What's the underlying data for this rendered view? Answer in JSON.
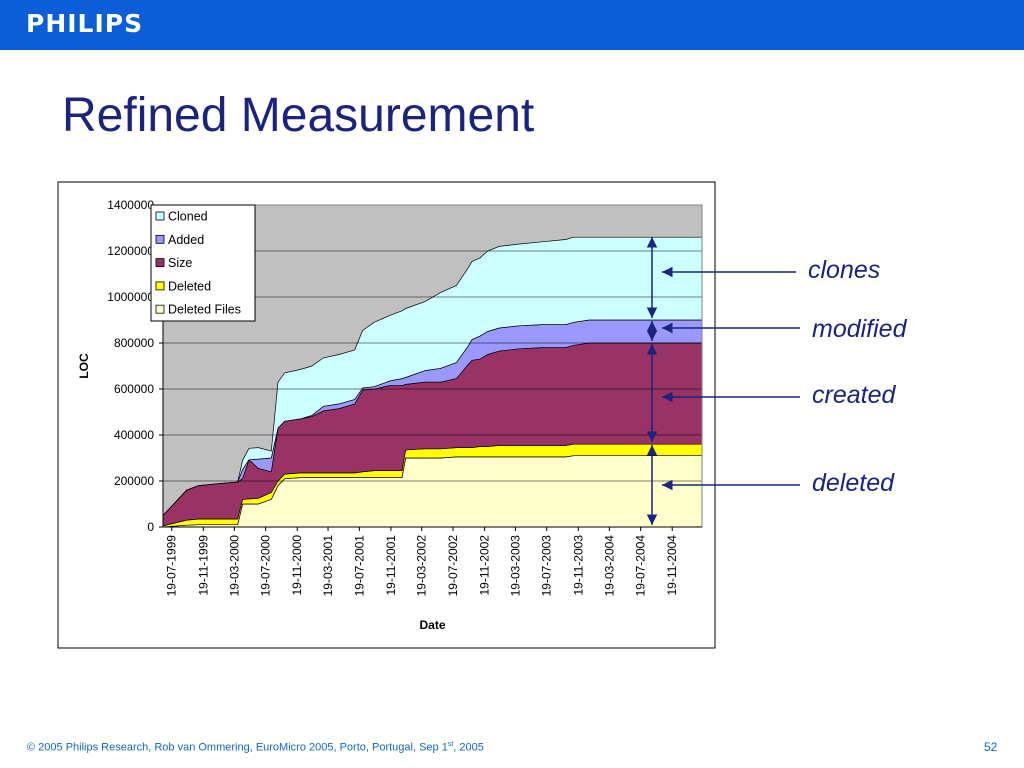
{
  "header": {
    "logo_text": "PHILIPS",
    "bar_color": "#0b5ed7"
  },
  "slide": {
    "title": "Refined Measurement",
    "page_number": "52"
  },
  "footer": {
    "text_before_sup": "© 2005 Philips Research,  Rob van Ommering, EuroMicro 2005, Porto, Portugal, Sep 1",
    "sup": "st",
    "text_after_sup": ", 2005"
  },
  "annotations": {
    "clones": "clones",
    "modified": "modified",
    "created": "created",
    "deleted": "deleted",
    "arrow_color": "#1a237e"
  },
  "chart_data": {
    "type": "area",
    "stacked": true,
    "title": "",
    "xlabel": "Date",
    "ylabel": "LOC",
    "ylim": [
      0,
      1400000
    ],
    "yticks": [
      0,
      200000,
      400000,
      600000,
      800000,
      1000000,
      1200000,
      1400000
    ],
    "xlim": [
      "1999-06-15",
      "2005-03-15"
    ],
    "xtick_labels": [
      "19-07-1999",
      "19-11-1999",
      "19-03-2000",
      "19-07-2000",
      "19-11-2000",
      "19-03-2001",
      "19-07-2001",
      "19-11-2001",
      "19-03-2002",
      "19-07-2002",
      "19-11-2002",
      "19-03-2003",
      "19-07-2003",
      "19-11-2003",
      "19-03-2004",
      "19-07-2004",
      "19-11-2004"
    ],
    "xtick_dates": [
      "1999-07-19",
      "1999-11-19",
      "2000-03-19",
      "2000-07-19",
      "2000-11-19",
      "2001-03-19",
      "2001-07-19",
      "2001-11-19",
      "2002-03-19",
      "2002-07-19",
      "2002-11-19",
      "2003-03-19",
      "2003-07-19",
      "2003-11-19",
      "2004-03-19",
      "2004-07-19",
      "2004-11-19"
    ],
    "grid": true,
    "legend_position": "top-left",
    "plot_background": "#c0c0c0",
    "x": [
      "1999-06-15",
      "1999-09-15",
      "1999-11-01",
      "2000-02-01",
      "2000-04-01",
      "2000-04-20",
      "2000-05-15",
      "2000-06-20",
      "2000-08-10",
      "2000-09-05",
      "2000-10-01",
      "2000-12-01",
      "2001-01-15",
      "2001-03-01",
      "2001-05-01",
      "2001-07-01",
      "2001-08-01",
      "2001-09-15",
      "2001-11-15",
      "2002-01-01",
      "2002-01-15",
      "2002-04-01",
      "2002-06-01",
      "2002-08-01",
      "2002-09-15",
      "2002-10-01",
      "2002-11-01",
      "2002-12-01",
      "2003-01-15",
      "2003-04-01",
      "2003-07-01",
      "2003-10-01",
      "2003-11-01",
      "2004-01-01",
      "2004-03-01",
      "2004-06-01",
      "2004-09-01",
      "2004-11-01",
      "2005-03-15"
    ],
    "series": [
      {
        "name": "Deleted Files",
        "color": "#ffffcc",
        "values": [
          0,
          8000,
          10000,
          10000,
          10000,
          100000,
          100000,
          100000,
          120000,
          180000,
          210000,
          215000,
          215000,
          215000,
          215000,
          215000,
          215000,
          215000,
          215000,
          215000,
          300000,
          300000,
          300000,
          305000,
          305000,
          305000,
          305000,
          305000,
          305000,
          305000,
          305000,
          305000,
          310000,
          310000,
          310000,
          310000,
          310000,
          310000,
          310000
        ]
      },
      {
        "name": "Deleted",
        "color": "#ffff00",
        "values": [
          5000,
          22000,
          25000,
          25000,
          25000,
          20000,
          22000,
          25000,
          30000,
          20000,
          20000,
          20000,
          20000,
          20000,
          20000,
          20000,
          25000,
          30000,
          30000,
          30000,
          35000,
          40000,
          40000,
          40000,
          40000,
          40000,
          45000,
          45000,
          50000,
          50000,
          50000,
          50000,
          50000,
          50000,
          50000,
          50000,
          50000,
          50000,
          50000
        ]
      },
      {
        "name": "Size",
        "color": "#993366",
        "values": [
          45000,
          130000,
          145000,
          155000,
          160000,
          90000,
          170000,
          130000,
          90000,
          230000,
          230000,
          235000,
          245000,
          270000,
          280000,
          300000,
          355000,
          355000,
          370000,
          370000,
          285000,
          290000,
          290000,
          300000,
          360000,
          380000,
          380000,
          400000,
          410000,
          420000,
          425000,
          425000,
          430000,
          440000,
          440000,
          440000,
          440000,
          440000,
          440000
        ]
      },
      {
        "name": "Added",
        "color": "#9999ff",
        "values": [
          0,
          0,
          0,
          0,
          0,
          40000,
          0,
          40000,
          60000,
          0,
          0,
          0,
          5000,
          20000,
          20000,
          20000,
          10000,
          10000,
          20000,
          30000,
          30000,
          50000,
          60000,
          70000,
          80000,
          90000,
          100000,
          100000,
          100000,
          100000,
          100000,
          100000,
          100000,
          100000,
          100000,
          100000,
          100000,
          100000,
          100000
        ]
      },
      {
        "name": "Cloned",
        "color": "#ccffff",
        "values": [
          0,
          0,
          0,
          0,
          0,
          40000,
          50000,
          50000,
          30000,
          200000,
          210000,
          215000,
          215000,
          210000,
          215000,
          215000,
          250000,
          280000,
          285000,
          295000,
          300000,
          300000,
          330000,
          335000,
          340000,
          340000,
          340000,
          350000,
          355000,
          355000,
          360000,
          370000,
          370000,
          360000,
          360000,
          360000,
          360000,
          360000,
          360000
        ]
      }
    ]
  }
}
